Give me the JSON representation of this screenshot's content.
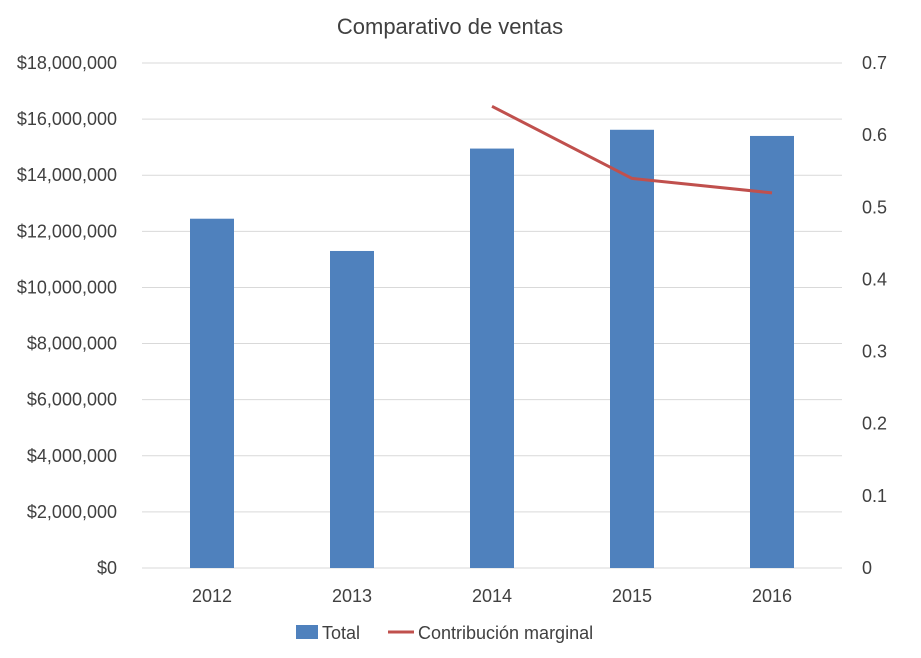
{
  "chart_data": {
    "type": "bar",
    "title": "Comparativo de ventas",
    "categories": [
      "2012",
      "2013",
      "2014",
      "2015",
      "2016"
    ],
    "series": [
      {
        "name": "Total",
        "type": "bar",
        "axis": "left",
        "color": "#4F81BD",
        "values": [
          12450000,
          11300000,
          14950000,
          15620000,
          15400000
        ]
      },
      {
        "name": "Contribución marginal",
        "type": "line",
        "axis": "right",
        "color": "#C0504D",
        "values": [
          null,
          null,
          0.64,
          0.54,
          0.52
        ]
      }
    ],
    "y_left": {
      "min": 0,
      "max": 18000000,
      "ticks": [
        "$0",
        "$2,000,000",
        "$4,000,000",
        "$6,000,000",
        "$8,000,000",
        "$10,000,000",
        "$12,000,000",
        "$14,000,000",
        "$16,000,000",
        "$18,000,000"
      ]
    },
    "y_right": {
      "min": 0,
      "max": 0.7,
      "ticks": [
        "0",
        "0.1",
        "0.2",
        "0.3",
        "0.4",
        "0.5",
        "0.6",
        "0.7"
      ]
    },
    "grid": true,
    "legend": "bottom"
  }
}
